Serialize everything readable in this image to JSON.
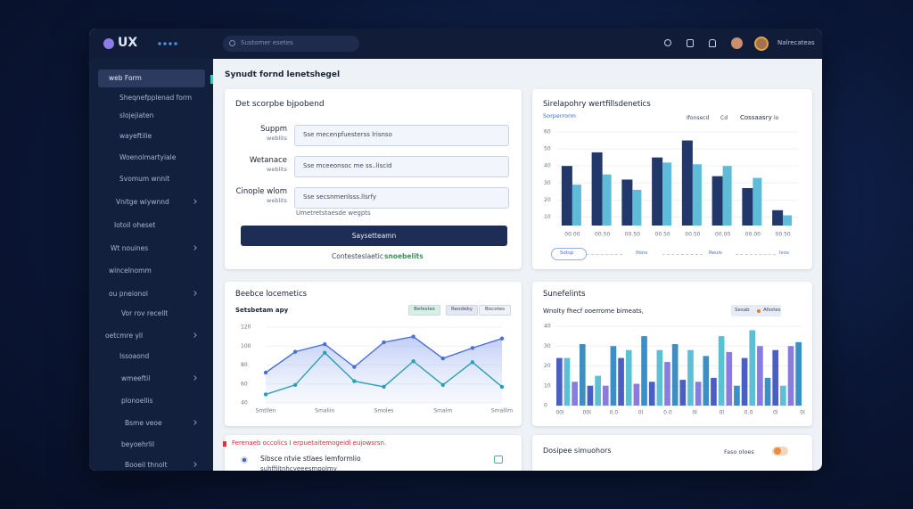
{
  "header": {
    "logo": "UX",
    "search": "Sustomer esetes",
    "user": "Nalrecateas"
  },
  "sidebar": {
    "items": [
      "web Form",
      "Sheqnefpplenad form",
      "slojejiaten",
      "wayeftilie",
      "Woenolmartyiale",
      "Svomum wnnit",
      "Vnitge wiywnnd",
      "Iotoil oheset",
      "Wt nouines",
      "wincelnomm",
      "ou pneionol",
      "Vor rov recellt",
      "oetcmre yll",
      "Issoaond",
      "wmeeftil",
      "plonoellis",
      "Bsme veoe",
      "beyoehrlil",
      "Booeil thnolt"
    ]
  },
  "page_title": "Synudt fornd lenetshegel",
  "form_card": {
    "title": "Det scorpbe bjpobend",
    "fields": [
      {
        "label": "Suppm",
        "sub": "weblits",
        "placeholder": "Sse mecenpfuesterss lrisnso"
      },
      {
        "label": "Wetanace",
        "sub": "weblits",
        "placeholder": "Sse mceeonsoc me ss..liscid"
      },
      {
        "label": "Cinople wlom",
        "sub": "weblits",
        "placeholder": "Sse secsnmenlsss.llsrfy"
      }
    ],
    "helper": "Umetretstaesde wegpts",
    "button": "Saysetteamn",
    "link_prefix": "Contesteslaetic",
    "link": "snoebelits"
  },
  "comparison_card": {
    "title": "Sirelapohry wertfillsdenetics",
    "subtitle": "Sorperrorm",
    "legend_label": "Ifonsecd",
    "legend_short": "Cd",
    "legend_right": "Cossaasry",
    "legend_num": "lo",
    "controls": [
      "Sotsp",
      "Ifons",
      "Reuls",
      "Isns"
    ],
    "chart": {
      "type": "bar",
      "categories": [
        "00.00",
        "00.50",
        "00.50",
        "00.50",
        "00.50",
        "00.00",
        "00.00",
        "00.50"
      ],
      "series": [
        {
          "name": "Ifonsecd",
          "color": "#22386b",
          "values": [
            40,
            48,
            32,
            45,
            55,
            34,
            27,
            14
          ]
        },
        {
          "name": "Cossaasry",
          "color": "#5fbcd8",
          "values": [
            29,
            35,
            26,
            42,
            41,
            40,
            33,
            11
          ]
        }
      ],
      "ylim": [
        5,
        60
      ],
      "yticks": [
        10,
        20,
        30,
        40,
        50,
        60
      ]
    }
  },
  "trend_card": {
    "title": "Beebce locemetics",
    "subtitle": "Setsbetam apy",
    "tabs": [
      "Befestes",
      "Reodeby",
      "Bocotes"
    ],
    "chart": {
      "type": "line",
      "categories": [
        "Smtllen",
        null,
        "Smaliin",
        null,
        "Smoles",
        null,
        "Smalm",
        null,
        "Smalllm"
      ],
      "series": [
        {
          "name": "Befestes",
          "color": "#4a6fd8",
          "values": [
            72,
            94,
            102,
            78,
            104,
            110,
            87,
            98,
            108
          ]
        },
        {
          "name": "Reodeby",
          "color": "#2aa0b8",
          "values": [
            49,
            59,
            93,
            63,
            57,
            84,
            59,
            83,
            57
          ]
        }
      ],
      "ylim": [
        40,
        120
      ],
      "yticks": [
        40,
        60,
        80,
        100,
        120
      ]
    }
  },
  "activity_card": {
    "title": "Sunefelints",
    "subtitle": "Wnolty fhecf ooerrome bimeats,",
    "chip": "Sesab",
    "chip2": "Afsstes",
    "chart": {
      "type": "bar",
      "x_labels": [
        "00l",
        "00l",
        "0.0",
        "0l",
        "0.0",
        "0l",
        "0l",
        "0.0",
        "0l",
        "0l"
      ],
      "colors": [
        "#4a5fc1",
        "#5bc0d4",
        "#8a7be0",
        "#3b8fc4"
      ],
      "values": [
        24,
        24,
        12,
        31,
        10,
        15,
        10,
        30,
        24,
        28,
        11,
        35,
        12,
        28,
        22,
        31,
        13,
        28,
        12,
        25,
        14,
        35,
        27,
        10,
        24,
        38,
        30,
        14,
        28,
        10,
        30,
        32
      ],
      "ylim": [
        0,
        40
      ],
      "yticks": [
        0,
        10,
        20,
        30,
        40
      ]
    }
  },
  "alert_card": {
    "alert": "Ferenaeb occolics I erpuetaitemogeidl eujowsrsn.",
    "item_title": "Sibsce ntvie stlaes lemformlio",
    "item_sub": "suhffiltnhcyeeesmpolmy"
  },
  "settings_card": {
    "title": "Dosipee simuohors",
    "label": "Faso oloes"
  }
}
